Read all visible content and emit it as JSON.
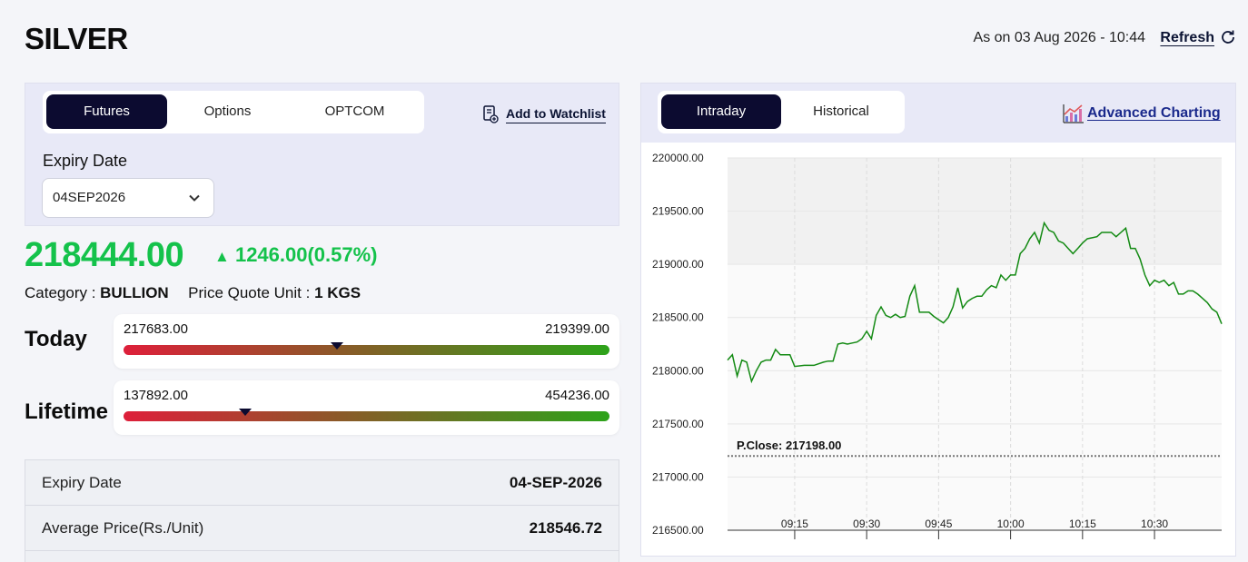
{
  "header": {
    "title": "SILVER",
    "as_on": "As on 03 Aug 2026 - 10:44",
    "refresh_label": "Refresh"
  },
  "left": {
    "tabs": [
      {
        "label": "Futures",
        "active": true
      },
      {
        "label": "Options",
        "active": false
      },
      {
        "label": "OPTCOM",
        "active": false
      }
    ],
    "watchlist_label": "Add to Watchlist",
    "expiry_label": "Expiry Date",
    "expiry_value": "04SEP2026",
    "price": "218444.00",
    "change": "1246.00(0.57%)",
    "category_label": "Category : ",
    "category_value": "BULLION",
    "unit_label": "Price Quote Unit : ",
    "unit_value": "1 KGS",
    "today": {
      "label": "Today",
      "low": "217683.00",
      "high": "219399.00",
      "marker_fraction": 0.44
    },
    "lifetime": {
      "label": "Lifetime",
      "low": "137892.00",
      "high": "454236.00",
      "marker_fraction": 0.25
    },
    "info_rows": [
      {
        "key": "Expiry Date",
        "value": "04-SEP-2026"
      },
      {
        "key": "Average Price(Rs./Unit)",
        "value": "218546.72"
      }
    ]
  },
  "right": {
    "tabs": [
      {
        "label": "Intraday",
        "active": true
      },
      {
        "label": "Historical",
        "active": false
      }
    ],
    "advanced_label": "Advanced Charting"
  },
  "colors": {
    "accent_dark": "#0c0b30",
    "up_green": "#14c24b",
    "line_green": "#138a13"
  },
  "chart_data": {
    "type": "line",
    "y_ticks": [
      "220000.00",
      "219500.00",
      "219000.00",
      "218500.00",
      "218000.00",
      "217500.00",
      "217000.00",
      "216500.00"
    ],
    "x_ticks": [
      "09:15",
      "09:30",
      "09:45",
      "10:00",
      "10:15",
      "10:30"
    ],
    "ylim": [
      216500,
      220000
    ],
    "xlim": [
      "09:01",
      "10:44"
    ],
    "pclose_label": "P.Close: 217198.00",
    "pclose_value": 217198,
    "grid": true,
    "series": [
      {
        "x": [
          "09:01",
          "09:02",
          "09:03",
          "09:04",
          "09:05",
          "09:06",
          "09:07",
          "09:08",
          "09:09",
          "09:10",
          "09:11",
          "09:12",
          "09:13",
          "09:14",
          "09:15",
          "09:17",
          "09:19",
          "09:21",
          "09:22",
          "09:23",
          "09:24",
          "09:25",
          "09:26",
          "09:27",
          "09:28",
          "09:29",
          "09:30",
          "09:31",
          "09:32",
          "09:33",
          "09:34",
          "09:35",
          "09:36",
          "09:37",
          "09:38",
          "09:39",
          "09:40",
          "09:41",
          "09:42",
          "09:43",
          "09:44",
          "09:45",
          "09:46",
          "09:47",
          "09:48",
          "09:49",
          "09:50",
          "09:51",
          "09:52",
          "09:53",
          "09:54",
          "09:55",
          "09:56",
          "09:57",
          "09:58",
          "09:59",
          "10:00",
          "10:01",
          "10:02",
          "10:03",
          "10:04",
          "10:05",
          "10:06",
          "10:07",
          "10:08",
          "10:09",
          "10:10",
          "10:11",
          "10:12",
          "10:13",
          "10:14",
          "10:15",
          "10:16",
          "10:17",
          "10:18",
          "10:19",
          "10:20",
          "10:21",
          "10:22",
          "10:23",
          "10:24",
          "10:25",
          "10:26",
          "10:27",
          "10:28",
          "10:29",
          "10:30",
          "10:31",
          "10:32",
          "10:33",
          "10:34",
          "10:35",
          "10:36",
          "10:37",
          "10:38",
          "10:39",
          "10:40",
          "10:41",
          "10:42",
          "10:43",
          "10:44"
        ],
        "y": [
          218100,
          218150,
          217950,
          218100,
          218080,
          217900,
          218000,
          218080,
          218100,
          218100,
          218200,
          218150,
          218150,
          218150,
          218040,
          218050,
          218050,
          218080,
          218090,
          218090,
          218250,
          218260,
          218250,
          218260,
          218270,
          218300,
          218370,
          218300,
          218520,
          218600,
          218520,
          218500,
          218530,
          218500,
          218510,
          218700,
          218800,
          218550,
          218550,
          218550,
          218510,
          218480,
          218450,
          218500,
          218600,
          218780,
          218590,
          218650,
          218680,
          218700,
          218700,
          218760,
          218800,
          218780,
          218900,
          218850,
          218900,
          218900,
          219100,
          219150,
          219240,
          219300,
          219200,
          219390,
          219320,
          219300,
          219220,
          219200,
          219150,
          219100,
          219150,
          219200,
          219240,
          219250,
          219260,
          219300,
          219300,
          219300,
          219260,
          219300,
          219340,
          219150,
          219150,
          219050,
          218900,
          218800,
          218850,
          218830,
          218850,
          218800,
          218830,
          218720,
          218720,
          218750,
          218750,
          218720,
          218680,
          218640,
          218580,
          218550,
          218440
        ]
      }
    ]
  }
}
